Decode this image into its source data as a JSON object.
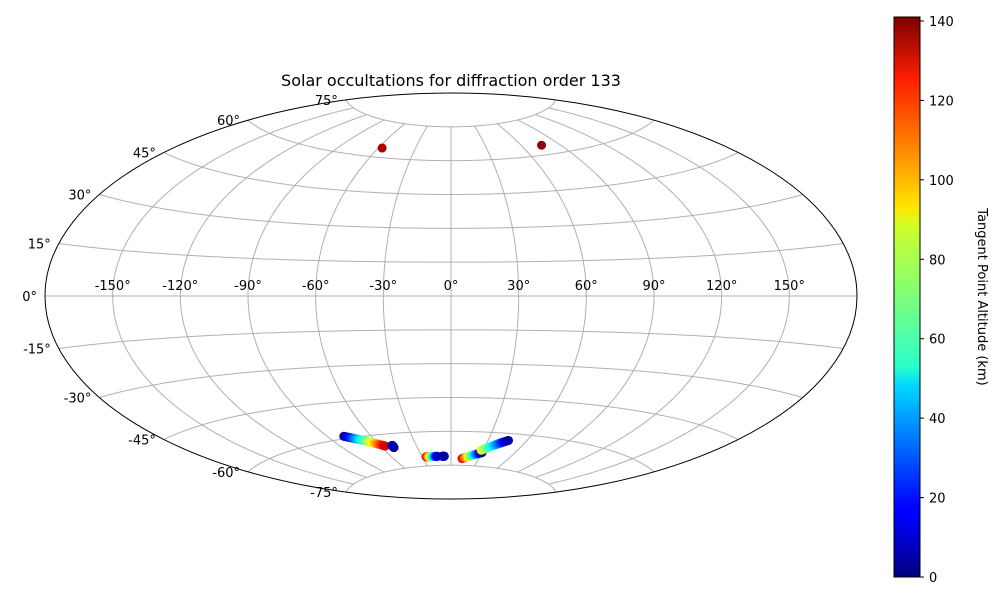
{
  "chart_data": {
    "type": "scatter",
    "projection": "aitoff",
    "title": "Solar occultations for diffraction order 133",
    "x_ticks": [
      -150,
      -120,
      -90,
      -60,
      -30,
      0,
      30,
      60,
      90,
      120,
      150
    ],
    "x_tick_labels": [
      "-150°",
      "-120°",
      "-90°",
      "-60°",
      "-30°",
      "0°",
      "30°",
      "60°",
      "90°",
      "120°",
      "150°"
    ],
    "y_ticks": [
      -75,
      -60,
      -45,
      -30,
      -15,
      0,
      15,
      30,
      45,
      60,
      75
    ],
    "y_tick_labels": [
      "-75°",
      "-60°",
      "-45°",
      "-30°",
      "-15°",
      "0°",
      "15°",
      "30°",
      "45°",
      "60°",
      "75°"
    ],
    "xlim": [
      -180,
      180
    ],
    "ylim": [
      -90,
      90
    ],
    "grid": true,
    "colorbar": {
      "label": "Tangent Point Altitude (km)",
      "range": [
        0,
        141
      ],
      "ticks": [
        0,
        20,
        40,
        60,
        80,
        100,
        120,
        140
      ],
      "tick_labels": [
        "0",
        "20",
        "40",
        "60",
        "80",
        "100",
        "120",
        "140"
      ],
      "colormap": "jet"
    },
    "tracks": [
      {
        "lon_start": -79,
        "lat_start": -59,
        "alt_start": 2,
        "lon_end": -56,
        "lat_end": -65,
        "alt_end": 130
      },
      {
        "lon_start": -50,
        "lat_start": -65,
        "alt_start": 8,
        "lon_end": -50,
        "lat_end": -66,
        "alt_end": 6
      },
      {
        "lon_start": -26,
        "lat_start": -71,
        "alt_start": 130,
        "lon_end": -14,
        "lat_end": -71,
        "alt_end": 10
      },
      {
        "lon_start": -9,
        "lat_start": -71,
        "alt_start": 12,
        "lon_end": -7,
        "lat_end": -71,
        "alt_end": 4
      },
      {
        "lon_start": 12,
        "lat_start": -72,
        "alt_start": 130,
        "lon_end": 30,
        "lat_end": -69,
        "alt_end": 5
      },
      {
        "lon_start": 28,
        "lat_start": -68,
        "alt_start": 90,
        "lon_end": 46,
        "lat_end": -63,
        "alt_end": 5
      }
    ],
    "points": [
      {
        "lon": -57,
        "lat": 64,
        "alt": 135
      },
      {
        "lon": 76,
        "lat": 64,
        "alt": 138
      }
    ]
  }
}
